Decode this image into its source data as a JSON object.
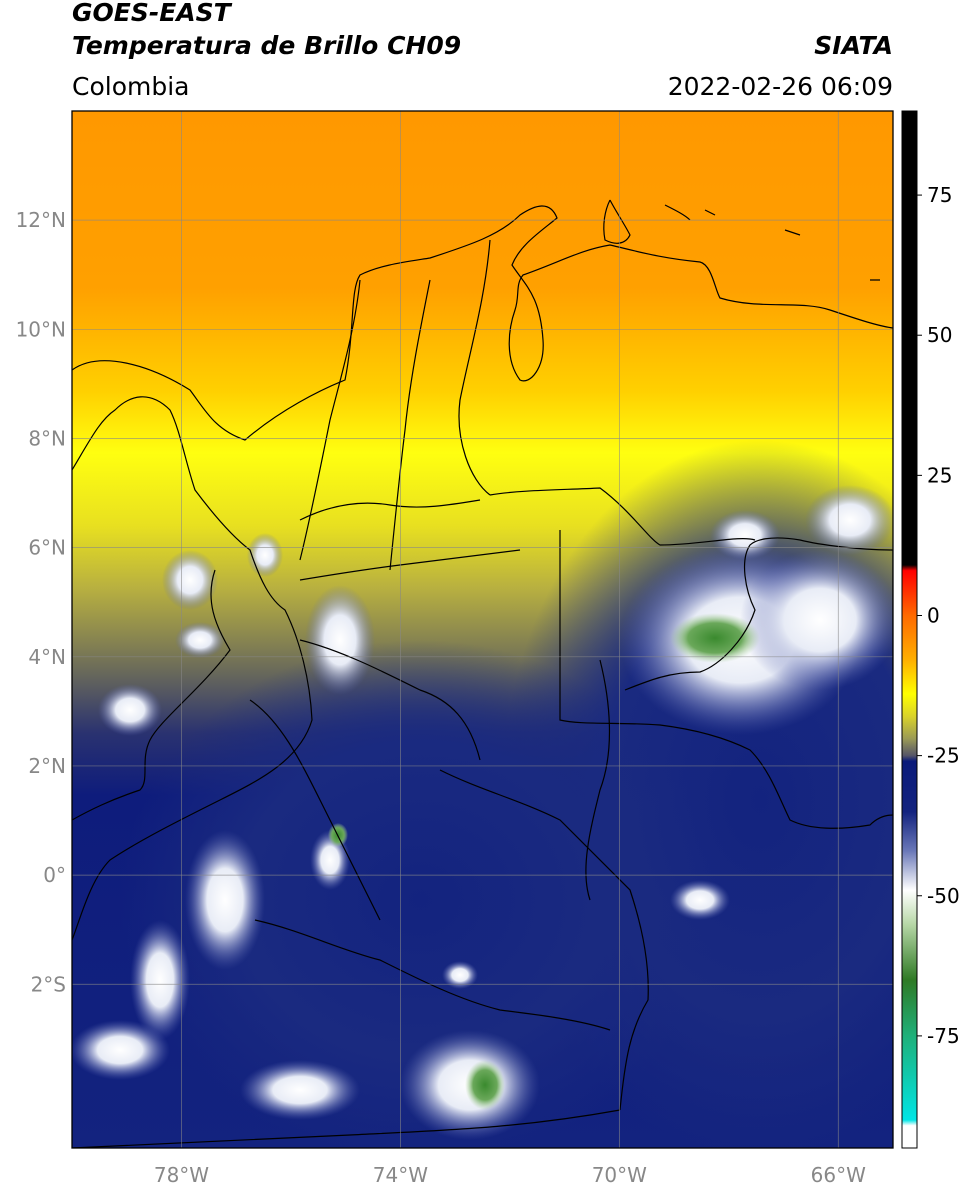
{
  "header": {
    "satellite": "GOES-EAST",
    "product": "Temperatura de Brillo CH09",
    "agency": "SIATA",
    "region": "Colombia",
    "datetime": "2022-02-26 06:09"
  },
  "map": {
    "lon_range": [
      -80,
      -65
    ],
    "lat_range": [
      -5,
      14
    ],
    "lat_ticks": [
      {
        "value": 12,
        "label": "12°N"
      },
      {
        "value": 10,
        "label": "10°N"
      },
      {
        "value": 8,
        "label": "8°N"
      },
      {
        "value": 6,
        "label": "6°N"
      },
      {
        "value": 4,
        "label": "4°N"
      },
      {
        "value": 2,
        "label": "2°N"
      },
      {
        "value": 0,
        "label": "0°"
      },
      {
        "value": -2,
        "label": "2°S"
      }
    ],
    "lon_ticks": [
      {
        "value": -78,
        "label": "78°W"
      },
      {
        "value": -74,
        "label": "74°W"
      },
      {
        "value": -70,
        "label": "70°W"
      },
      {
        "value": -66,
        "label": "66°W"
      }
    ]
  },
  "colorbar": {
    "range": [
      -95,
      90
    ],
    "ticks": [
      {
        "value": 75,
        "label": "75"
      },
      {
        "value": 50,
        "label": "50"
      },
      {
        "value": 25,
        "label": "25"
      },
      {
        "value": 0,
        "label": "0"
      },
      {
        "value": -25,
        "label": "-25"
      },
      {
        "value": -50,
        "label": "-50"
      },
      {
        "value": -75,
        "label": "-75"
      }
    ],
    "stops": [
      {
        "value": 90,
        "color": "#000000"
      },
      {
        "value": 9,
        "color": "#000000"
      },
      {
        "value": 8,
        "color": "#ff0000"
      },
      {
        "value": 0,
        "color": "#ff6a00"
      },
      {
        "value": -8,
        "color": "#ffb000"
      },
      {
        "value": -14,
        "color": "#ffff00"
      },
      {
        "value": -18,
        "color": "#d9d22a"
      },
      {
        "value": -22,
        "color": "#9a9a55"
      },
      {
        "value": -25,
        "color": "#555568"
      },
      {
        "value": -26,
        "color": "#0a1a7a"
      },
      {
        "value": -35,
        "color": "#13237f"
      },
      {
        "value": -42,
        "color": "#6a78b8"
      },
      {
        "value": -49,
        "color": "#ffffff"
      },
      {
        "value": -55,
        "color": "#b8d8a8"
      },
      {
        "value": -65,
        "color": "#2f7a25"
      },
      {
        "value": -75,
        "color": "#1fb07a"
      },
      {
        "value": -90,
        "color": "#00e5e5"
      },
      {
        "value": -91,
        "color": "#ffffff"
      },
      {
        "value": -95,
        "color": "#ffffff"
      }
    ]
  }
}
